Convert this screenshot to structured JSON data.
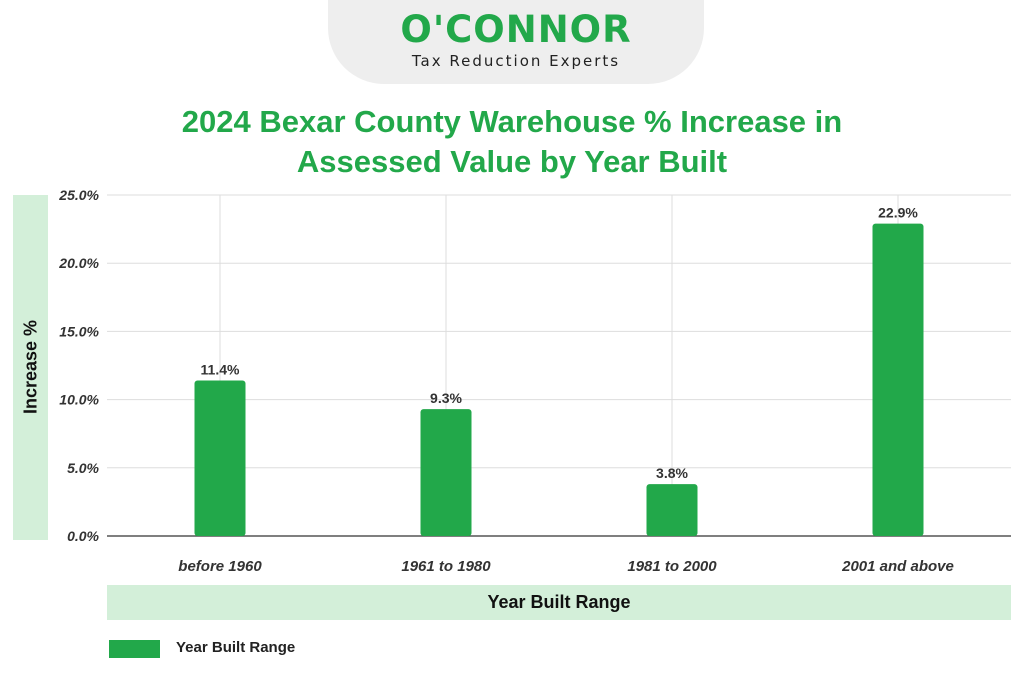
{
  "header": {
    "brand": "O'CONNOR",
    "tagline": "Tax Reduction Experts"
  },
  "colors": {
    "bar": "#22a84a",
    "title": "#22a84a",
    "label_band": "#d3efd9",
    "grid": "#dddddd"
  },
  "chart_data": {
    "type": "bar",
    "title": "2024 Bexar County Warehouse % Increase in Assessed Value by Year Built",
    "title_lines": [
      "2024 Bexar County Warehouse % Increase in",
      "Assessed Value by Year Built"
    ],
    "xlabel": "Year Built Range",
    "ylabel": "Increase %",
    "categories": [
      "before 1960",
      "1961 to 1980",
      "1981 to 2000",
      "2001 and above"
    ],
    "series": [
      {
        "name": "Year Built Range",
        "values": [
          11.4,
          9.3,
          3.8,
          22.9
        ]
      }
    ],
    "data_labels": [
      "11.4%",
      "9.3%",
      "3.8%",
      "22.9%"
    ],
    "ylim": [
      0,
      25
    ],
    "yticks": [
      0,
      5,
      10,
      15,
      20,
      25
    ],
    "ytick_labels": [
      "0.0%",
      "5.0%",
      "10.0%",
      "15.0%",
      "20.0%",
      "25.0%"
    ],
    "grid": true,
    "legend": "bottom-left"
  }
}
